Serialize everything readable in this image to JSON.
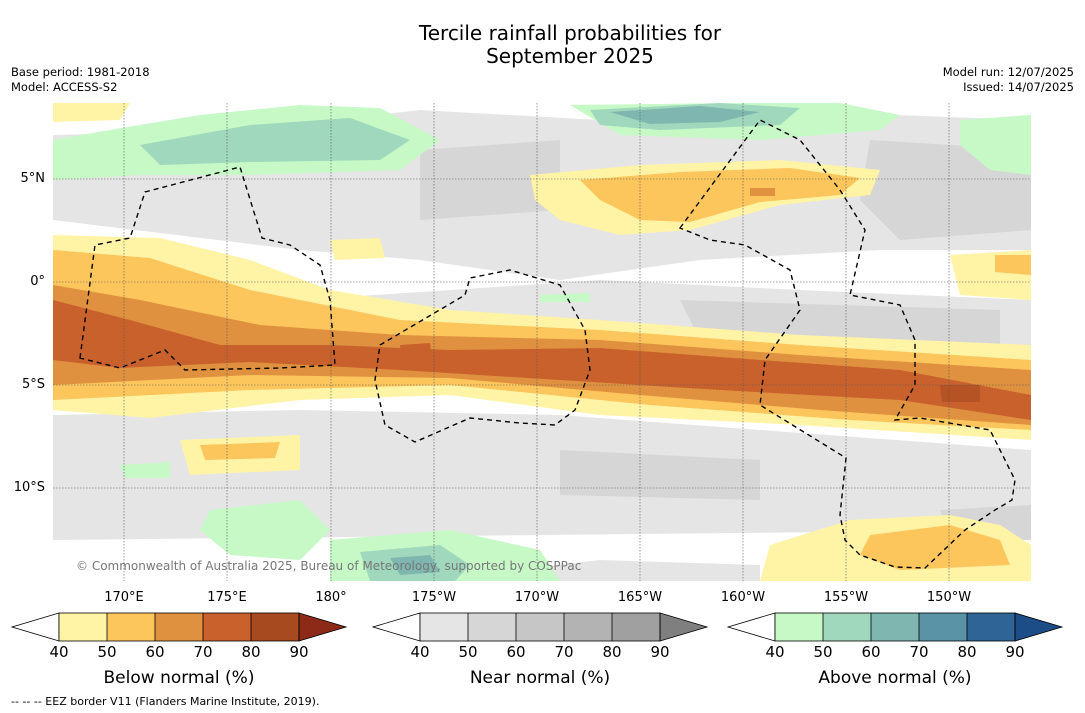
{
  "title_line1": "Tercile rainfall probabilities for",
  "title_line2": "September 2025",
  "base_period": "Base period: 1981-2018",
  "model": "Model: ACCESS-S2",
  "model_run": "Model run: 12/07/2025",
  "issued": "Issued: 14/07/2025",
  "lat_labels": [
    "5°N",
    "0°",
    "5°S",
    "10°S"
  ],
  "lon_labels": [
    "170°E",
    "175°E",
    "180°",
    "175°W",
    "170°W",
    "165°W",
    "160°W",
    "155°W",
    "150°W"
  ],
  "copyright": "© Commonwealth of Australia 2025, Bureau of Meteorology, supported by COSPPac",
  "footer": "--  --  -- EEZ border V11 (Flanders Marine Institute, 2019).",
  "colorbars": [
    {
      "title": "Below normal (%)",
      "ticks": [
        "40",
        "50",
        "60",
        "70",
        "80",
        "90"
      ],
      "colors": [
        "#fff3a6",
        "#fcc65d",
        "#e0913f",
        "#c9612c",
        "#a84a1f"
      ],
      "extend_color": "#8c2a17"
    },
    {
      "title": "Near normal (%)",
      "ticks": [
        "40",
        "50",
        "60",
        "70",
        "80",
        "90"
      ],
      "colors": [
        "#e5e5e5",
        "#d6d6d6",
        "#c6c6c6",
        "#b3b3b3",
        "#a0a0a0"
      ],
      "extend_color": "#7f7f7f"
    },
    {
      "title": "Above normal (%)",
      "ticks": [
        "40",
        "50",
        "60",
        "70",
        "80",
        "90"
      ],
      "colors": [
        "#c6f9c6",
        "#9fd8bc",
        "#7fb7b0",
        "#5b93a6",
        "#2f6496"
      ],
      "extend_color": "#1c4d86"
    }
  ]
}
